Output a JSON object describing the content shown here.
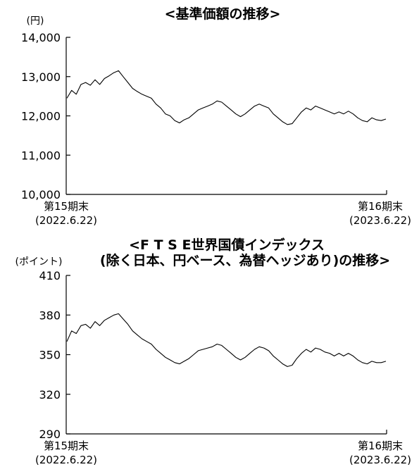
{
  "chart_data": [
    {
      "type": "line",
      "title": "<基準価額の推移>",
      "unit_label": "(円)",
      "ylim": [
        10000,
        14000
      ],
      "yticks": [
        "14,000",
        "13,000",
        "12,000",
        "11,000",
        "10,000"
      ],
      "ytick_values": [
        14000,
        13000,
        12000,
        11000,
        10000
      ],
      "x_start": {
        "label": "第15期末",
        "date": "(2022.6.22)"
      },
      "x_end": {
        "label": "第16期末",
        "date": "(2023.6.22)"
      },
      "grid": false,
      "series": [
        {
          "values": [
            12450,
            12650,
            12550,
            12800,
            12850,
            12780,
            12920,
            12800,
            12950,
            13020,
            13100,
            13150,
            13000,
            12850,
            12700,
            12620,
            12550,
            12500,
            12450,
            12300,
            12200,
            12050,
            12000,
            11880,
            11820,
            11900,
            11950,
            12050,
            12150,
            12200,
            12250,
            12300,
            12380,
            12350,
            12250,
            12150,
            12050,
            11980,
            12050,
            12150,
            12250,
            12300,
            12250,
            12200,
            12050,
            11950,
            11850,
            11780,
            11800,
            11950,
            12100,
            12200,
            12150,
            12250,
            12200,
            12150,
            12100,
            12050,
            12100,
            12050,
            12120,
            12050,
            11950,
            11880,
            11850,
            11950,
            11900,
            11880,
            11920
          ]
        }
      ]
    },
    {
      "type": "line",
      "title_line1": "<F T S E世界国債インデックス",
      "title_line2": "(除く日本、円ベース、為替ヘッジあり)の推移>",
      "unit_label": "(ポイント)",
      "ylim": [
        290,
        410
      ],
      "yticks": [
        "410",
        "380",
        "350",
        "320",
        "290"
      ],
      "ytick_values": [
        410,
        380,
        350,
        320,
        290
      ],
      "x_start": {
        "label": "第15期末",
        "date": "(2022.6.22)"
      },
      "x_end": {
        "label": "第16期末",
        "date": "(2023.6.22)"
      },
      "grid": false,
      "series": [
        {
          "values": [
            360,
            368,
            366,
            372,
            373,
            370,
            375,
            372,
            376,
            378,
            380,
            381,
            377,
            373,
            368,
            365,
            362,
            360,
            358,
            354,
            351,
            348,
            346,
            344,
            343,
            345,
            347,
            350,
            353,
            354,
            355,
            356,
            358,
            357,
            354,
            351,
            348,
            346,
            348,
            351,
            354,
            356,
            355,
            353,
            349,
            346,
            343,
            341,
            342,
            347,
            351,
            354,
            352,
            355,
            354,
            352,
            351,
            349,
            351,
            349,
            351,
            349,
            346,
            344,
            343,
            345,
            344,
            344,
            345
          ]
        }
      ]
    }
  ]
}
